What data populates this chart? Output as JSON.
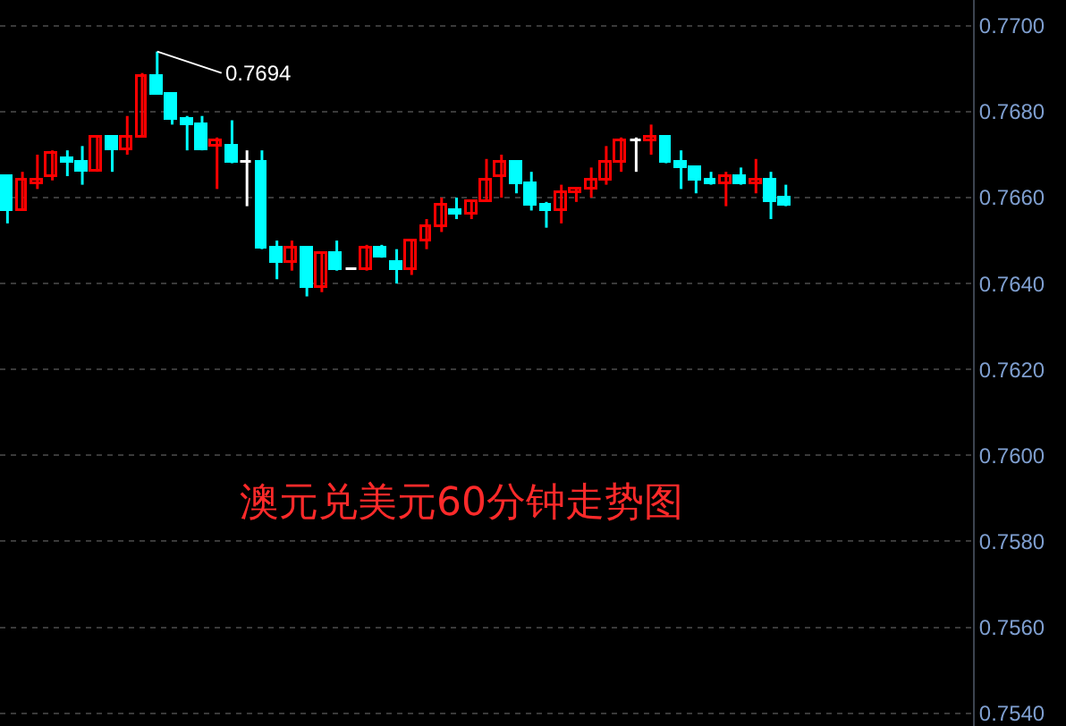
{
  "chart_data": {
    "type": "candlestick",
    "title": "澳元兑美元60分钟走势图",
    "categories": [
      null,
      null,
      null,
      null,
      null,
      null,
      null,
      null,
      null,
      null,
      null,
      null,
      null,
      null,
      null,
      null,
      null,
      null,
      null,
      null,
      null,
      null,
      null,
      null,
      null,
      null,
      null,
      null,
      null,
      null,
      null,
      null,
      null,
      null,
      null,
      null,
      null,
      null,
      null,
      null,
      null,
      null,
      null,
      null,
      null,
      null,
      null,
      null,
      null,
      null,
      null,
      null,
      null,
      null,
      null,
      null,
      null,
      null,
      null,
      null,
      null,
      null,
      null,
      null,
      null
    ],
    "ohlc": [
      [
        0.7665,
        0.7665,
        0.7654,
        0.7657
      ],
      [
        0.7657,
        0.7666,
        0.7657,
        0.7664
      ],
      [
        0.7663,
        0.767,
        0.7662,
        0.7664
      ],
      [
        0.7665,
        0.7671,
        0.7664,
        0.767
      ],
      [
        0.7669,
        0.7671,
        0.7665,
        0.7668
      ],
      [
        0.7668,
        0.7672,
        0.7663,
        0.7666
      ],
      [
        0.7666,
        0.7674,
        0.7666,
        0.7674
      ],
      [
        0.7674,
        0.7674,
        0.7666,
        0.7671
      ],
      [
        0.7671,
        0.7679,
        0.767,
        0.7674
      ],
      [
        0.7674,
        0.7689,
        0.7674,
        0.7688
      ],
      [
        0.7688,
        0.7694,
        0.7684,
        0.7684
      ],
      [
        0.7684,
        0.7684,
        0.7677,
        0.7678
      ],
      [
        0.7678,
        0.7679,
        0.7671,
        0.7677
      ],
      [
        0.7677,
        0.7679,
        0.7671,
        0.7671
      ],
      [
        0.7672,
        0.7674,
        0.7662,
        0.7673
      ],
      [
        0.7672,
        0.7678,
        0.7668,
        0.7668
      ],
      [
        0.7668,
        0.7671,
        0.7658,
        0.7668
      ],
      [
        0.7668,
        0.7671,
        0.7648,
        0.7648
      ],
      [
        0.7648,
        0.765,
        0.7641,
        0.7645
      ],
      [
        0.7645,
        0.765,
        0.7643,
        0.7648
      ],
      [
        0.7648,
        0.7648,
        0.7637,
        0.7639
      ],
      [
        0.7639,
        0.7647,
        0.7638,
        0.7647
      ],
      [
        0.7647,
        0.765,
        0.7643,
        0.7643
      ],
      [
        0.7643,
        0.7643,
        0.7643,
        0.7643
      ],
      [
        0.7643,
        0.7649,
        0.7643,
        0.7648
      ],
      [
        0.7648,
        0.7649,
        0.7646,
        0.7646
      ],
      [
        0.7645,
        0.7648,
        0.764,
        0.7643
      ],
      [
        0.7643,
        0.765,
        0.7642,
        0.765
      ],
      [
        0.765,
        0.7655,
        0.7648,
        0.7653
      ],
      [
        0.7653,
        0.766,
        0.7652,
        0.7658
      ],
      [
        0.7657,
        0.766,
        0.7655,
        0.7656
      ],
      [
        0.7656,
        0.7659,
        0.7655,
        0.7659
      ],
      [
        0.7659,
        0.7669,
        0.7659,
        0.7664
      ],
      [
        0.7665,
        0.767,
        0.766,
        0.7668
      ],
      [
        0.7668,
        0.7668,
        0.7661,
        0.7663
      ],
      [
        0.7663,
        0.7666,
        0.7657,
        0.7658
      ],
      [
        0.7658,
        0.7659,
        0.7653,
        0.7657
      ],
      [
        0.7657,
        0.7663,
        0.7654,
        0.7661
      ],
      [
        0.7661,
        0.7662,
        0.7659,
        0.7662
      ],
      [
        0.7662,
        0.7667,
        0.766,
        0.7664
      ],
      [
        0.7664,
        0.7672,
        0.7663,
        0.7668
      ],
      [
        0.7668,
        0.7674,
        0.7666,
        0.7673
      ],
      [
        0.7673,
        0.7674,
        0.7666,
        0.7673
      ],
      [
        0.7673,
        0.7677,
        0.767,
        0.7674
      ],
      [
        0.7674,
        0.7674,
        0.7668,
        0.7668
      ],
      [
        0.7668,
        0.7671,
        0.7662,
        0.7667
      ],
      [
        0.7667,
        0.7667,
        0.7661,
        0.7664
      ],
      [
        0.7664,
        0.7666,
        0.7663,
        0.7663
      ],
      [
        0.7663,
        0.7666,
        0.7658,
        0.7665
      ],
      [
        0.7665,
        0.7667,
        0.7663,
        0.7663
      ],
      [
        0.7663,
        0.7669,
        0.7661,
        0.7664
      ],
      [
        0.7664,
        0.7666,
        0.7655,
        0.7659
      ],
      [
        0.766,
        0.7663,
        0.7658,
        0.7658
      ],
      null,
      null,
      null,
      null,
      null,
      null,
      null,
      null,
      null,
      null,
      null,
      null
    ],
    "colors": [
      "#00ffff",
      "#ff0000",
      "#ff0000",
      "#ff0000",
      "#00ffff",
      "#00ffff",
      "#ff0000",
      "#00ffff",
      "#ff0000",
      "#ff0000",
      "#00ffff",
      "#00ffff",
      "#00ffff",
      "#00ffff",
      "#ff0000",
      "#00ffff",
      "#ffffff",
      "#00ffff",
      "#00ffff",
      "#ff0000",
      "#00ffff",
      "#ff0000",
      "#00ffff",
      "#ffffff",
      "#ff0000",
      "#00ffff",
      "#00ffff",
      "#ff0000",
      "#ff0000",
      "#ff0000",
      "#00ffff",
      "#ff0000",
      "#ff0000",
      "#ff0000",
      "#00ffff",
      "#00ffff",
      "#00ffff",
      "#ff0000",
      "#ff0000",
      "#ff0000",
      "#ff0000",
      "#ff0000",
      "#ffffff",
      "#ff0000",
      "#00ffff",
      "#00ffff",
      "#00ffff",
      "#00ffff",
      "#ff0000",
      "#00ffff",
      "#ff0000",
      "#00ffff",
      "#00ffff",
      null,
      null,
      null,
      null,
      null,
      null,
      null,
      null,
      null,
      null,
      null,
      null
    ],
    "ylim": [
      0.7537,
      0.7706
    ],
    "yticks": [
      {
        "value": 0.754,
        "label": "0.7540"
      },
      {
        "value": 0.756,
        "label": "0.7560"
      },
      {
        "value": 0.758,
        "label": "0.7580"
      },
      {
        "value": 0.76,
        "label": "0.7600"
      },
      {
        "value": 0.762,
        "label": "0.7620"
      },
      {
        "value": 0.764,
        "label": "0.7640"
      },
      {
        "value": 0.766,
        "label": "0.7660"
      },
      {
        "value": 0.768,
        "label": "0.7680"
      },
      {
        "value": 0.77,
        "label": "0.7700"
      }
    ],
    "grid": "y",
    "legend": false,
    "annotations": [
      "0.7694"
    ]
  }
}
